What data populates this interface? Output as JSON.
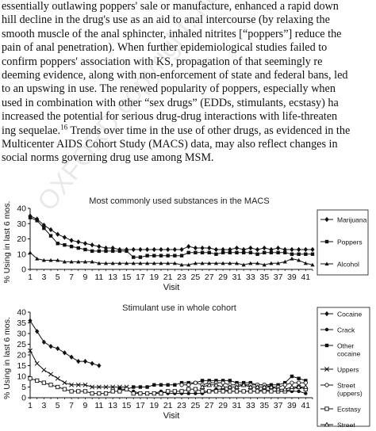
{
  "body_lines": [
    "essentially outlawing poppers' sale or manufacture, enhanced a rapid down",
    "hill decline in the drug's use as an aid to anal intercourse (by relaxing the",
    "smooth muscle of the anal sphincter, inhaled nitrites [“poppers”] reduce the",
    "pain of anal penetration). When further epidemiological studies failed to",
    "confirm poppers' association with KS, propagation of that seemingly re",
    "deeming evidence, along with non-enforcement of state and federal bans, led",
    "to an upswing in use. The renewed popularity of poppers, especially when",
    "used in combination with other “sex drugs” (EDDs, stimulants, ecstasy) ha",
    "increased the potential for serious drug-drug interactions with life-threaten",
    "ing sequelae.",
    "Multicenter AIDS Cohort Study (MACS) data, may also reflect changes in",
    "social norms governing drug use among MSM."
  ],
  "footnote_ref": "16",
  "line10_tail": " Trends over time in the use of other drugs, as evidenced in the",
  "watermark": "OXFORD copyright: not for distribution",
  "chart_data": [
    {
      "type": "line",
      "title": "Most commonly used substances in the MACS",
      "xlabel": "Visit",
      "ylabel": "% Using in last 6 mos.",
      "ylim": [
        0,
        40
      ],
      "yticks": [
        "0",
        "10",
        "20",
        "30",
        "40"
      ],
      "xlim": [
        1,
        42
      ],
      "xticks": [
        "1",
        "3",
        "5",
        "7",
        "9",
        "11",
        "13",
        "15",
        "17",
        "19",
        "21",
        "23",
        "25",
        "27",
        "29",
        "31",
        "33",
        "35",
        "37",
        "39",
        "41"
      ],
      "legend_position": "right",
      "series": [
        {
          "name": "Marijuana",
          "marker": "diamond",
          "x": [
            1,
            2,
            3,
            4,
            5,
            6,
            7,
            8,
            9,
            10,
            11,
            12,
            13,
            14,
            15,
            16,
            17,
            18,
            19,
            20,
            21,
            22,
            23,
            24,
            25,
            26,
            27,
            28,
            29,
            30,
            31,
            32,
            33,
            34,
            35,
            36,
            37,
            38,
            39,
            40,
            41,
            42
          ],
          "y": [
            35,
            33,
            29,
            26,
            23,
            21,
            19,
            18,
            17,
            16,
            15,
            14,
            14,
            13,
            13,
            13,
            13,
            13,
            13,
            13,
            13,
            13,
            13,
            15,
            14,
            14,
            14,
            13,
            13,
            13,
            14,
            13,
            14,
            13,
            14,
            13,
            14,
            13,
            13,
            13,
            13,
            13
          ]
        },
        {
          "name": "Poppers",
          "marker": "square",
          "x": [
            1,
            2,
            3,
            4,
            5,
            6,
            7,
            8,
            9,
            10,
            11,
            12,
            13,
            14,
            15,
            16,
            17,
            18,
            19,
            20,
            21,
            22,
            23,
            24,
            25,
            26,
            27,
            28,
            29,
            30,
            31,
            32,
            33,
            34,
            35,
            36,
            37,
            38,
            39,
            40,
            41,
            42
          ],
          "y": [
            34,
            32,
            27,
            22,
            17,
            16,
            15,
            14,
            13,
            12,
            12,
            12,
            12,
            12,
            12,
            8,
            8,
            9,
            9,
            9,
            9,
            9,
            9,
            11,
            11,
            11,
            11,
            10,
            11,
            11,
            11,
            11,
            11,
            10,
            11,
            11,
            11,
            11,
            10,
            10,
            10,
            10
          ]
        },
        {
          "name": "Alcohol",
          "marker": "triangle",
          "x": [
            1,
            2,
            3,
            4,
            5,
            6,
            7,
            8,
            9,
            10,
            11,
            12,
            13,
            14,
            15,
            16,
            17,
            18,
            19,
            20,
            21,
            22,
            23,
            24,
            25,
            26,
            27,
            28,
            29,
            30,
            31,
            32,
            33,
            34,
            35,
            36,
            37,
            38,
            39,
            40,
            41,
            42
          ],
          "y": [
            11,
            7,
            6,
            6,
            6,
            5,
            5,
            5,
            5,
            5,
            4,
            4,
            4,
            4,
            4,
            4,
            4,
            4,
            4,
            4,
            4,
            4,
            3,
            3,
            4,
            4,
            4,
            4,
            4,
            4,
            4,
            3,
            4,
            4,
            3,
            4,
            4,
            5,
            7,
            6,
            4,
            3
          ]
        }
      ]
    },
    {
      "type": "line",
      "title": "Stimulant use in whole cohort",
      "xlabel": "Visit",
      "ylabel": "% Using in last 6 mos.",
      "ylim": [
        0,
        40
      ],
      "yticks": [
        "0",
        "5",
        "10",
        "15",
        "20",
        "25",
        "30",
        "35",
        "40"
      ],
      "xlim": [
        1,
        42
      ],
      "xticks": [
        "1",
        "3",
        "5",
        "7",
        "9",
        "11",
        "13",
        "15",
        "17",
        "19",
        "21",
        "23",
        "25",
        "27",
        "29",
        "31",
        "33",
        "35",
        "37",
        "39",
        "41"
      ],
      "legend_position": "right",
      "series": [
        {
          "name": "Cocaine",
          "marker": "diamond",
          "x": [
            1,
            2,
            3,
            4,
            5,
            6,
            7,
            8,
            9,
            10,
            11
          ],
          "y": [
            36,
            31,
            26,
            24,
            23,
            21,
            19,
            17,
            17,
            16,
            15
          ]
        },
        {
          "name": "Crack",
          "marker": "filled-circle",
          "x": [
            16,
            17,
            18,
            19,
            20,
            21,
            22,
            23,
            24,
            25,
            26,
            27,
            28,
            29,
            30,
            31,
            32,
            33,
            34,
            35,
            36,
            37,
            38,
            39,
            40,
            41
          ],
          "y": [
            3,
            2,
            2,
            2,
            3,
            2,
            2,
            2,
            2,
            2,
            2,
            3,
            4,
            4,
            3,
            3,
            3,
            3,
            3,
            4,
            3,
            3,
            3,
            3,
            3,
            2
          ]
        },
        {
          "name": "Other cocaine",
          "marker": "filled-square",
          "x": [
            14,
            15,
            16,
            17,
            18,
            19,
            20,
            21,
            22,
            23,
            24,
            25,
            26,
            27,
            28,
            29,
            30,
            31,
            32,
            33,
            34,
            35,
            36,
            37,
            38,
            39,
            40,
            41
          ],
          "y": [
            4,
            4,
            5,
            5,
            5,
            6,
            6,
            6,
            6,
            7,
            7,
            7,
            8,
            8,
            8,
            8,
            8,
            7,
            7,
            7,
            6,
            6,
            6,
            6,
            7,
            10,
            9,
            8
          ]
        },
        {
          "name": "Uppers",
          "marker": "x",
          "x": [
            1,
            2,
            3,
            4,
            5,
            6,
            7,
            8,
            9,
            10,
            11,
            12,
            13,
            14,
            15
          ],
          "y": [
            22,
            16,
            13,
            11,
            9,
            7,
            6,
            6,
            6,
            5,
            5,
            5,
            5,
            5,
            5
          ]
        },
        {
          "name": "Street (uppers)",
          "marker": "open-circle",
          "x": [
            23,
            24,
            25,
            26,
            27,
            28,
            29,
            30,
            31,
            32,
            33,
            34,
            35,
            36,
            37,
            38,
            39,
            40,
            41
          ],
          "y": [
            6,
            6,
            7,
            6,
            7,
            7,
            7,
            6,
            6,
            6,
            6,
            6,
            6,
            5,
            5,
            6,
            7,
            7,
            7
          ]
        },
        {
          "name": "Ecstasy",
          "marker": "open-square",
          "x": [
            1,
            2,
            3,
            4,
            5,
            6,
            7,
            8,
            9,
            10,
            11,
            12,
            13,
            14,
            15,
            16,
            17,
            18,
            19,
            20,
            21,
            22,
            23,
            24,
            25,
            26,
            27,
            28,
            29,
            30,
            31,
            32,
            33,
            34,
            35,
            36,
            37,
            38,
            39,
            40,
            41
          ],
          "y": [
            9,
            8,
            7,
            6,
            5,
            4,
            3,
            3,
            3,
            2,
            2,
            2,
            3,
            3,
            4,
            2,
            2,
            2,
            2,
            2,
            3,
            3,
            3,
            4,
            4,
            3,
            3,
            3,
            3,
            3,
            3,
            3,
            3,
            3,
            3,
            3,
            3,
            3,
            4,
            5,
            4
          ]
        },
        {
          "name": "Street (ecstasy)",
          "marker": "open-triangle",
          "x": [
            26,
            27,
            28,
            29,
            30,
            31,
            32,
            33,
            34,
            35,
            36,
            37,
            38,
            39,
            40,
            41
          ],
          "y": [
            5,
            6,
            6,
            5,
            5,
            5,
            6,
            5,
            5,
            5,
            5,
            4,
            4,
            5,
            5,
            5
          ]
        }
      ]
    }
  ]
}
